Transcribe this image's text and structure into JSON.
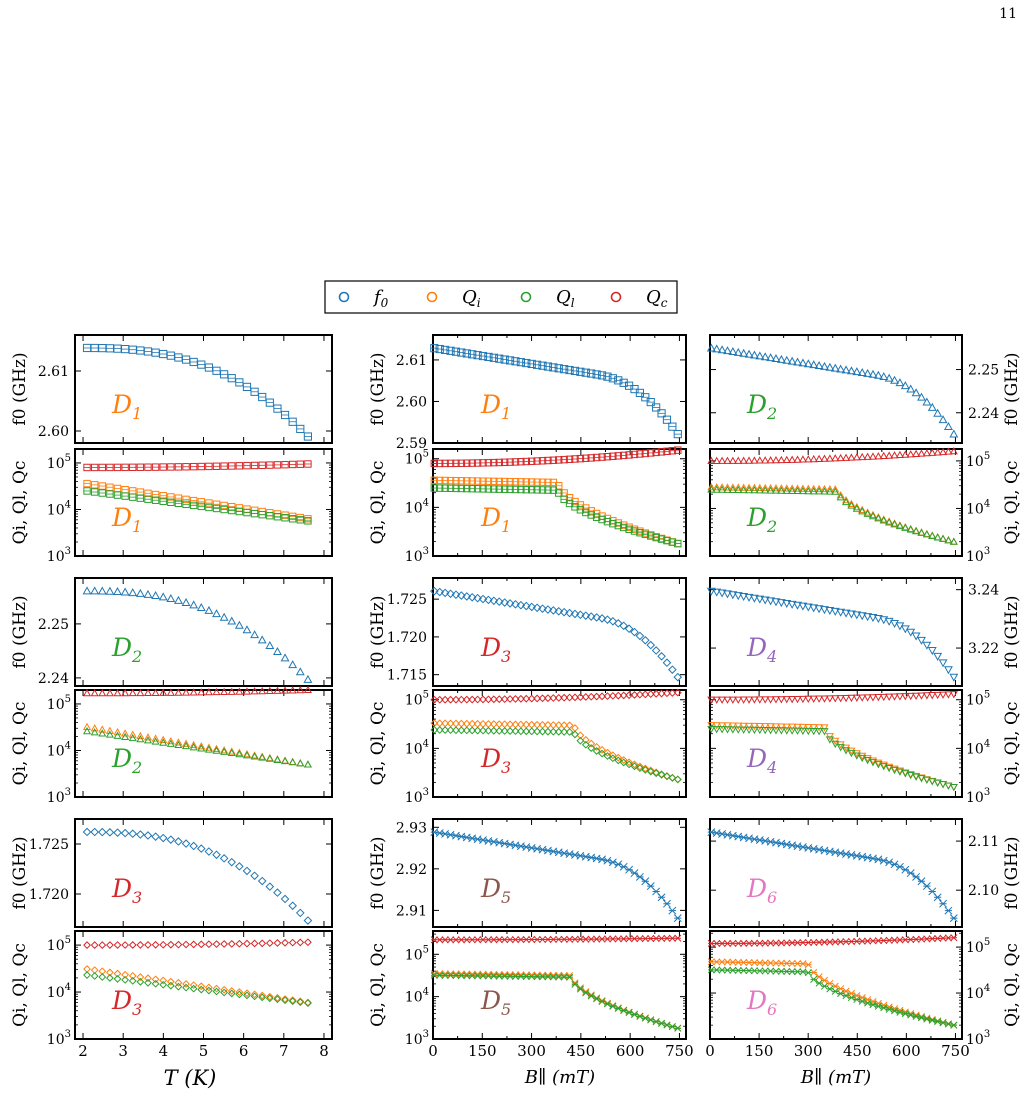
{
  "page_number": "11",
  "legend": {
    "items": [
      {
        "label": "f",
        "sub": "0",
        "color": "#1f77b4"
      },
      {
        "label": "Q",
        "sub": "i",
        "color": "#ff7f0e"
      },
      {
        "label": "Q",
        "sub": "l",
        "color": "#2ca02c"
      },
      {
        "label": "Q",
        "sub": "c",
        "color": "#d62728"
      }
    ]
  },
  "colors": {
    "f0": "#1f77b4",
    "Qi": "#ff7f0e",
    "Ql": "#2ca02c",
    "Qc": "#d62728",
    "D1": "#ff7f0e",
    "D2": "#2ca02c",
    "D3": "#d62728",
    "D4": "#9467bd",
    "D5": "#8c564b",
    "D6": "#e377c2"
  },
  "axis_labels": {
    "f0": "f0 (GHz)",
    "Q": "Qi, Ql, Qc",
    "T": "T (K)",
    "B": "B∥ (mT)"
  },
  "chart_data": [
    {
      "type": "scatter",
      "id": "f-D1-T",
      "col": 0,
      "row": 0,
      "kind": "f",
      "device": "D1",
      "sweep": "T",
      "marker": "square",
      "xlim": [
        1.8,
        8.2
      ],
      "ylim": [
        2.598,
        2.616
      ],
      "yticks": [
        2.6,
        2.61
      ],
      "ytick_labels": [
        "2.60",
        "2.61"
      ],
      "yaxis": "left"
    },
    {
      "type": "scatter",
      "id": "q-D1-T",
      "col": 0,
      "row": 1,
      "kind": "q",
      "device": "D1",
      "sweep": "T",
      "marker": "square",
      "xlim": [
        1.8,
        8.2
      ],
      "ylim": [
        3,
        5.3
      ],
      "yaxis": "left",
      "Qc": [
        80000.0,
        95000.0
      ],
      "Qi": [
        36000.0,
        6300.0
      ],
      "Ql": [
        25000.0,
        5700.0
      ]
    },
    {
      "type": "scatter",
      "id": "f-D1-B",
      "col": 1,
      "row": 0,
      "kind": "f",
      "device": "D1",
      "sweep": "B",
      "marker": "square",
      "xlim": [
        0,
        770
      ],
      "ylim": [
        2.59,
        2.616
      ],
      "yticks": [
        2.59,
        2.6,
        2.61
      ],
      "ytick_labels": [
        "2.59",
        "2.60",
        "2.61"
      ],
      "yaxis": "left"
    },
    {
      "type": "scatter",
      "id": "q-D1-B",
      "col": 1,
      "row": 1,
      "kind": "q",
      "device": "D1",
      "sweep": "B",
      "marker": "square",
      "xlim": [
        0,
        770
      ],
      "ylim": [
        3,
        5.2
      ],
      "yaxis": "left",
      "Qc": [
        80000.0,
        150000.0
      ],
      "Qi": [
        36000.0,
        1800.0
      ],
      "Ql": [
        25000.0,
        1800.0
      ],
      "knee": 380
    },
    {
      "type": "scatter",
      "id": "f-D2-B",
      "col": 2,
      "row": 0,
      "kind": "f",
      "device": "D2",
      "sweep": "B",
      "marker": "triangle-up",
      "xlim": [
        0,
        770
      ],
      "ylim": [
        2.233,
        2.258
      ],
      "yticks": [
        2.24,
        2.25
      ],
      "ytick_labels": [
        "2.24",
        "2.25"
      ],
      "yaxis": "right"
    },
    {
      "type": "scatter",
      "id": "q-D2-B",
      "col": 2,
      "row": 1,
      "kind": "q",
      "device": "D2",
      "sweep": "B",
      "marker": "triangle-up",
      "xlim": [
        0,
        770
      ],
      "ylim": [
        3,
        5.25
      ],
      "yaxis": "right",
      "Qc": [
        100000.0,
        160000.0
      ],
      "Qi": [
        28000.0,
        2000.0
      ],
      "Ql": [
        25000.0,
        2000.0
      ],
      "knee": 390
    },
    {
      "type": "scatter",
      "id": "f-D2-T",
      "col": 0,
      "row": 2,
      "kind": "f",
      "device": "D2",
      "sweep": "T",
      "marker": "triangle-up",
      "xlim": [
        1.8,
        8.2
      ],
      "ylim": [
        2.2385,
        2.2585
      ],
      "yticks": [
        2.24,
        2.25
      ],
      "ytick_labels": [
        "2.24",
        "2.25"
      ],
      "yaxis": "left"
    },
    {
      "type": "scatter",
      "id": "q-D2-T",
      "col": 0,
      "row": 3,
      "kind": "q",
      "device": "D2",
      "sweep": "T",
      "marker": "triangle-up",
      "xlim": [
        1.8,
        8.2
      ],
      "ylim": [
        3,
        5.3
      ],
      "yaxis": "left",
      "Qc": [
        170000.0,
        200000.0
      ],
      "Qi": [
        32000.0,
        5000.0
      ],
      "Ql": [
        26000.0,
        5000.0
      ]
    },
    {
      "type": "scatter",
      "id": "f-D3-B",
      "col": 1,
      "row": 2,
      "kind": "f",
      "device": "D3",
      "sweep": "B",
      "marker": "diamond",
      "xlim": [
        0,
        770
      ],
      "ylim": [
        1.7135,
        1.7278
      ],
      "yticks": [
        1.715,
        1.72,
        1.725
      ],
      "ytick_labels": [
        "1.715",
        "1.720",
        "1.725"
      ],
      "yaxis": "left"
    },
    {
      "type": "scatter",
      "id": "q-D3-B",
      "col": 1,
      "row": 3,
      "kind": "q",
      "device": "D3",
      "sweep": "B",
      "marker": "diamond",
      "xlim": [
        0,
        770
      ],
      "ylim": [
        3,
        5.2
      ],
      "yaxis": "left",
      "Qc": [
        100000.0,
        140000.0
      ],
      "Qi": [
        33000.0,
        2300.0
      ],
      "Ql": [
        24000.0,
        2300.0
      ],
      "knee": 430
    },
    {
      "type": "scatter",
      "id": "f-D4-B",
      "col": 2,
      "row": 2,
      "kind": "f",
      "device": "D4",
      "sweep": "B",
      "marker": "triangle-down",
      "xlim": [
        0,
        770
      ],
      "ylim": [
        3.207,
        3.244
      ],
      "yticks": [
        3.22,
        3.24
      ],
      "ytick_labels": [
        "3.22",
        "3.24"
      ],
      "yaxis": "right"
    },
    {
      "type": "scatter",
      "id": "q-D4-B",
      "col": 2,
      "row": 3,
      "kind": "q",
      "device": "D4",
      "sweep": "B",
      "marker": "triangle-down",
      "xlim": [
        0,
        770
      ],
      "ylim": [
        3,
        5.2
      ],
      "yaxis": "right",
      "Qc": [
        100000.0,
        130000.0
      ],
      "Qi": [
        30000.0,
        1600.0
      ],
      "Ql": [
        25000.0,
        1600.0
      ],
      "knee": 350
    },
    {
      "type": "scatter",
      "id": "f-D3-T",
      "col": 0,
      "row": 4,
      "kind": "f",
      "device": "D3",
      "sweep": "T",
      "marker": "diamond",
      "xlim": [
        1.8,
        8.2
      ],
      "ylim": [
        1.7167,
        1.7275
      ],
      "yticks": [
        1.72,
        1.725
      ],
      "ytick_labels": [
        "1.720",
        "1.725"
      ],
      "yaxis": "left"
    },
    {
      "type": "scatter",
      "id": "q-D3-T",
      "col": 0,
      "row": 5,
      "kind": "q",
      "device": "D3",
      "sweep": "T",
      "marker": "diamond",
      "xlim": [
        1.8,
        8.2
      ],
      "ylim": [
        3,
        5.3
      ],
      "yaxis": "left",
      "Qc": [
        100000.0,
        115000.0
      ],
      "Qi": [
        31000.0,
        6000.0
      ],
      "Ql": [
        23000.0,
        5800.0
      ],
      "xticks": [
        2,
        3,
        4,
        5,
        6,
        7,
        8
      ],
      "xtick_labels": [
        "2",
        "3",
        "4",
        "5",
        "6",
        "7",
        "8"
      ]
    },
    {
      "type": "scatter",
      "id": "f-D5-B",
      "col": 1,
      "row": 4,
      "kind": "f",
      "device": "D5",
      "sweep": "B",
      "marker": "cross",
      "xlim": [
        0,
        770
      ],
      "ylim": [
        2.906,
        2.932
      ],
      "yticks": [
        2.91,
        2.92,
        2.93
      ],
      "ytick_labels": [
        "2.91",
        "2.92",
        "2.93"
      ],
      "yaxis": "left"
    },
    {
      "type": "scatter",
      "id": "q-D5-B",
      "col": 1,
      "row": 5,
      "kind": "q",
      "device": "D5",
      "sweep": "B",
      "marker": "cross",
      "xlim": [
        0,
        770
      ],
      "ylim": [
        3,
        5.55
      ],
      "yaxis": "left",
      "Qc": [
        220000.0,
        240000.0
      ],
      "Qi": [
        35000.0,
        1800.0
      ],
      "Ql": [
        32000.0,
        1800.0
      ],
      "knee": 420,
      "xticks": [
        0,
        150,
        300,
        450,
        600,
        750
      ],
      "xtick_labels": [
        "0",
        "150",
        "300",
        "450",
        "600",
        "750"
      ]
    },
    {
      "type": "scatter",
      "id": "f-D6-B",
      "col": 2,
      "row": 4,
      "kind": "f",
      "device": "D6",
      "sweep": "B",
      "marker": "cross",
      "xlim": [
        0,
        770
      ],
      "ylim": [
        2.0925,
        2.1145
      ],
      "yticks": [
        2.1,
        2.11
      ],
      "ytick_labels": [
        "2.10",
        "2.11"
      ],
      "yaxis": "right"
    },
    {
      "type": "scatter",
      "id": "q-D6-B",
      "col": 2,
      "row": 5,
      "kind": "q",
      "device": "D6",
      "sweep": "B",
      "marker": "cross",
      "xlim": [
        0,
        770
      ],
      "ylim": [
        3,
        5.35
      ],
      "yaxis": "right",
      "Qc": [
        120000.0,
        160000.0
      ],
      "Qi": [
        48000.0,
        2000.0
      ],
      "Ql": [
        32000.0,
        2000.0
      ],
      "knee": 300,
      "xticks": [
        0,
        150,
        300,
        450,
        600,
        750
      ],
      "xtick_labels": [
        "0",
        "150",
        "300",
        "450",
        "600",
        "750"
      ]
    }
  ]
}
